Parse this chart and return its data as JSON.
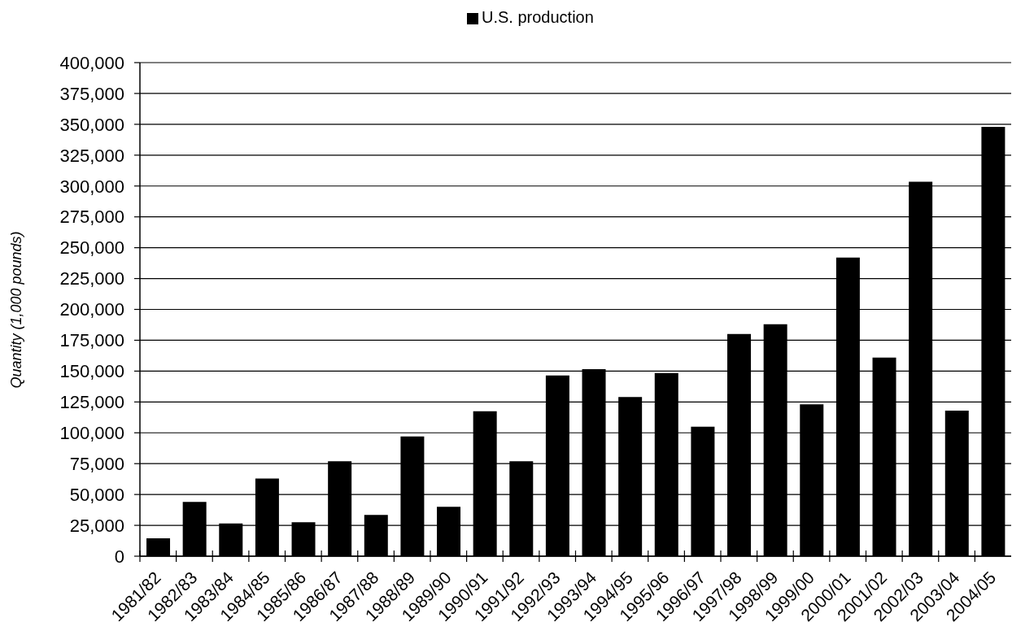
{
  "chart_data": {
    "type": "bar",
    "ylabel": "Quantity (1,000 pounds)",
    "legend": "top",
    "categories": [
      "1981/82",
      "1982/83",
      "1983/84",
      "1984/85",
      "1985/86",
      "1986/87",
      "1987/88",
      "1988/89",
      "1989/90",
      "1990/91",
      "1991/92",
      "1992/93",
      "1993/94",
      "1994/95",
      "1995/96",
      "1996/97",
      "1997/98",
      "1998/99",
      "1999/00",
      "2000/01",
      "2001/02",
      "2002/03",
      "2003/04",
      "2004/05"
    ],
    "series": [
      {
        "name": "U.S. production",
        "color": "#000000",
        "values": [
          14500,
          44000,
          26500,
          63000,
          27500,
          77000,
          33500,
          97000,
          40000,
          117500,
          77000,
          146500,
          151500,
          129000,
          148500,
          105000,
          180000,
          188000,
          123000,
          242000,
          161000,
          303500,
          118000,
          348000
        ]
      }
    ],
    "ylim": [
      0,
      400000
    ],
    "yticks": [
      {
        "value": 0,
        "label": "0"
      },
      {
        "value": 25000,
        "label": "25,000"
      },
      {
        "value": 50000,
        "label": "50,000"
      },
      {
        "value": 75000,
        "label": "75,000"
      },
      {
        "value": 100000,
        "label": "100,000"
      },
      {
        "value": 125000,
        "label": "125,000"
      },
      {
        "value": 150000,
        "label": "150,000"
      },
      {
        "value": 175000,
        "label": "175,000"
      },
      {
        "value": 200000,
        "label": "200,000"
      },
      {
        "value": 225000,
        "label": "225,000"
      },
      {
        "value": 250000,
        "label": "250,000"
      },
      {
        "value": 275000,
        "label": "275,000"
      },
      {
        "value": 300000,
        "label": "300,000"
      },
      {
        "value": 325000,
        "label": "325,000"
      },
      {
        "value": 350000,
        "label": "350,000"
      },
      {
        "value": 375000,
        "label": "375,000"
      },
      {
        "value": 400000,
        "label": "400,000"
      }
    ],
    "grid": "y"
  }
}
